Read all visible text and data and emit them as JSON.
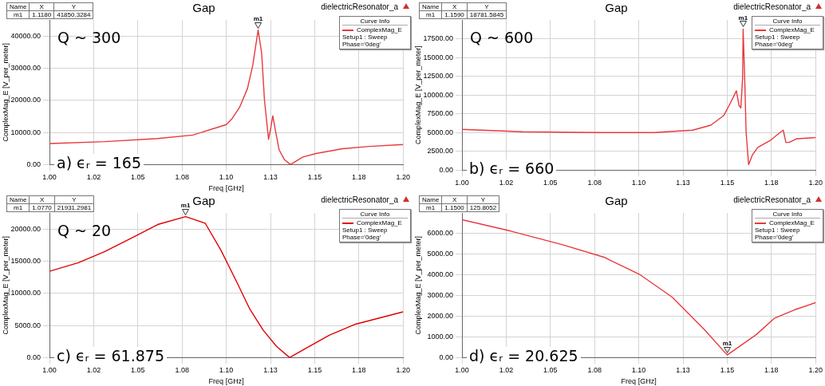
{
  "chart_data": [
    {
      "type": "line",
      "title": "Gap",
      "xlabel": "Freq [GHz]",
      "ylabel": "ComplexMag_E [V_per_meter]",
      "legend_title": "Curve Info",
      "legend": "top right",
      "grid": true,
      "xlim": [
        1.0,
        1.2
      ],
      "xticks": [
        {
          "value": 1.0,
          "label": "1.00"
        },
        {
          "value": 1.025,
          "label": "1.02"
        },
        {
          "value": 1.05,
          "label": "1.05"
        },
        {
          "value": 1.075,
          "label": "1.08"
        },
        {
          "value": 1.1,
          "label": "1.10"
        },
        {
          "value": 1.125,
          "label": "1.13"
        },
        {
          "value": 1.15,
          "label": "1.15"
        },
        {
          "value": 1.175,
          "label": "1.18"
        },
        {
          "value": 1.2,
          "label": "1.20"
        }
      ],
      "ylim": [
        0,
        45000
      ],
      "yticks": [
        {
          "value": 0,
          "label": "0.00"
        },
        {
          "value": 10000,
          "label": "10000.00"
        },
        {
          "value": 20000,
          "label": "20000.00"
        },
        {
          "value": 30000,
          "label": "30000.00"
        },
        {
          "value": 40000,
          "label": "40000.00"
        }
      ],
      "series": [
        {
          "name": "ComplexMag_E",
          "color": "#e8393c",
          "x": [
            1.0,
            1.031,
            1.061,
            1.081,
            1.1,
            1.103,
            1.1075,
            1.112,
            1.115,
            1.118,
            1.12,
            1.1216,
            1.1239,
            1.1251,
            1.1263,
            1.1276,
            1.1299,
            1.1328,
            1.1363,
            1.1433,
            1.1507,
            1.1657,
            1.1806,
            1.2
          ],
          "values": [
            6540,
            7130,
            8090,
            9190,
            12430,
            14100,
            17800,
            23700,
            31000,
            41850,
            34700,
            20000,
            7870,
            11200,
            15200,
            11200,
            4560,
            1600,
            0,
            2350,
            3460,
            4930,
            5660,
            6250
          ]
        }
      ],
      "annotations": [
        "dielectricResonator_a",
        "Setup1 : Sweep",
        "Phase='0deg'",
        "Name",
        "X",
        "Y",
        "m1",
        "1.1180",
        "41850.3284",
        "a) ϵᵣ = 165",
        "Q ~ 300",
        {
          "text": "m1",
          "x": 1.118,
          "y": 41850.3284
        }
      ]
    },
    {
      "type": "line",
      "title": "Gap",
      "ylabel": "ComplexMag_E [V_per_meter]",
      "legend_title": "Curve Info",
      "legend": "top right",
      "grid": true,
      "xlim": [
        1.0,
        1.2
      ],
      "xticks": [
        {
          "value": 1.0,
          "label": "1.00"
        },
        {
          "value": 1.025,
          "label": "1.02"
        },
        {
          "value": 1.05,
          "label": "1.05"
        },
        {
          "value": 1.075,
          "label": "1.08"
        },
        {
          "value": 1.1,
          "label": "1.10"
        },
        {
          "value": 1.125,
          "label": "1.13"
        },
        {
          "value": 1.15,
          "label": "1.15"
        },
        {
          "value": 1.175,
          "label": "1.18"
        },
        {
          "value": 1.2,
          "label": "1.20"
        }
      ],
      "ylim": [
        0,
        20000
      ],
      "yticks": [
        {
          "value": 0,
          "label": "0.00"
        },
        {
          "value": 2500,
          "label": "2500.00"
        },
        {
          "value": 5000,
          "label": "5000.00"
        },
        {
          "value": 7500,
          "label": "7500.00"
        },
        {
          "value": 10000,
          "label": "10000.00"
        },
        {
          "value": 12500,
          "label": "12500.00"
        },
        {
          "value": 15000,
          "label": "15000.00"
        },
        {
          "value": 17500,
          "label": "17500.00"
        }
      ],
      "series": [
        {
          "name": "ComplexMag_E",
          "color": "#e8393c",
          "x": [
            1.0,
            1.0346,
            1.0788,
            1.1083,
            1.1304,
            1.1407,
            1.1481,
            1.1518,
            1.1552,
            1.1567,
            1.1577,
            1.1587,
            1.159,
            1.1599,
            1.1607,
            1.1621,
            1.1643,
            1.1673,
            1.1747,
            1.1798,
            1.1817,
            1.1832,
            1.185,
            1.1894,
            1.2
          ],
          "values": [
            5410,
            5090,
            4990,
            4990,
            5310,
            5970,
            7280,
            8920,
            10560,
            8600,
            8270,
            12200,
            18781.5845,
            12200,
            4990,
            720,
            2030,
            3020,
            4000,
            4990,
            5310,
            3670,
            3670,
            4170,
            4330
          ]
        }
      ],
      "annotations": [
        "dielectricResonator_a",
        "Setup1 : Sweep",
        "Phase='0deg'",
        "Name",
        "X",
        "Y",
        "m1",
        "1.1590",
        "18781.5845",
        "b) ϵᵣ = 660",
        "Q ~ 600",
        {
          "text": "m1",
          "x": 1.159,
          "y": 18781.5845
        }
      ]
    },
    {
      "type": "line",
      "title": "Gap",
      "xlabel": "Freq [GHz]",
      "ylabel": "ComplexMag_E [V_per_meter]",
      "legend_title": "Curve Info",
      "legend": "top right",
      "grid": true,
      "xlim": [
        1.0,
        1.2
      ],
      "xticks": [
        {
          "value": 1.0,
          "label": "1.00"
        },
        {
          "value": 1.025,
          "label": "1.02"
        },
        {
          "value": 1.05,
          "label": "1.05"
        },
        {
          "value": 1.075,
          "label": "1.08"
        },
        {
          "value": 1.1,
          "label": "1.10"
        },
        {
          "value": 1.125,
          "label": "1.13"
        },
        {
          "value": 1.15,
          "label": "1.15"
        },
        {
          "value": 1.175,
          "label": "1.18"
        },
        {
          "value": 1.2,
          "label": "1.20"
        }
      ],
      "ylim": [
        0,
        22500
      ],
      "yticks": [
        {
          "value": 0,
          "label": "0.00"
        },
        {
          "value": 5000,
          "label": "5000.00"
        },
        {
          "value": 10000,
          "label": "10000.00"
        },
        {
          "value": 15000,
          "label": "15000.00"
        },
        {
          "value": 20000,
          "label": "20000.00"
        }
      ],
      "series": [
        {
          "name": "ComplexMag_E",
          "color": "#e00000",
          "x": [
            1.0,
            1.0164,
            1.0313,
            1.0463,
            1.0612,
            1.077,
            1.0881,
            1.097,
            1.106,
            1.1134,
            1.1209,
            1.1284,
            1.1358,
            1.1433,
            1.1582,
            1.1731,
            1.2
          ],
          "values": [
            13430,
            14770,
            16490,
            18590,
            20700,
            21931.2981,
            20890,
            16680,
            11710,
            7500,
            4250,
            1760,
            0,
            1190,
            3480,
            5200,
            7120
          ]
        }
      ],
      "annotations": [
        "dielectricResonator_a",
        "Setup1 : Sweep",
        "Phase='0deg'",
        "Name",
        "X",
        "Y",
        "m1",
        "1.0770",
        "21931.2981",
        "c) ϵᵣ = 61.875",
        "Q ~ 20",
        {
          "text": "m1",
          "x": 1.077,
          "y": 21931.2981
        }
      ]
    },
    {
      "type": "line",
      "title": "Gap",
      "xlabel": "Freq [GHz]",
      "ylabel": "ComplexMag_E [V_per_meter]",
      "legend_title": "Curve Info",
      "legend": "top right",
      "grid": true,
      "xlim": [
        1.0,
        1.2
      ],
      "xticks": [
        {
          "value": 1.0,
          "label": "1.00"
        },
        {
          "value": 1.025,
          "label": "1.02"
        },
        {
          "value": 1.05,
          "label": "1.05"
        },
        {
          "value": 1.075,
          "label": "1.08"
        },
        {
          "value": 1.1,
          "label": "1.10"
        },
        {
          "value": 1.125,
          "label": "1.13"
        },
        {
          "value": 1.15,
          "label": "1.15"
        },
        {
          "value": 1.175,
          "label": "1.18"
        },
        {
          "value": 1.2,
          "label": "1.20"
        }
      ],
      "ylim": [
        0,
        7000
      ],
      "yticks": [
        {
          "value": 0,
          "label": "0.00"
        },
        {
          "value": 1000,
          "label": "1000.00"
        },
        {
          "value": 2000,
          "label": "2000.00"
        },
        {
          "value": 3000,
          "label": "3000.00"
        },
        {
          "value": 4000,
          "label": "4000.00"
        },
        {
          "value": 5000,
          "label": "5000.00"
        },
        {
          "value": 6000,
          "label": "6000.00"
        }
      ],
      "series": [
        {
          "name": "ComplexMag_E",
          "color": "#e8393c",
          "x": [
            1.0,
            1.0277,
            1.0569,
            1.0803,
            1.1007,
            1.119,
            1.1372,
            1.15,
            1.1664,
            1.1766,
            1.1883,
            1.2
          ],
          "values": [
            6670,
            6120,
            5460,
            4860,
            4010,
            2920,
            1350,
            125.8052,
            1110,
            1900,
            2320,
            2660
          ]
        }
      ],
      "annotations": [
        "dielectricResonator_a",
        "Setup1 : Sweep",
        "Phase='0deg'",
        "Name",
        "X",
        "Y",
        "m1",
        "1.1500",
        "125.8052",
        "d) ϵᵣ = 20.625",
        {
          "text": "m1",
          "x": 1.15,
          "y": 125.8052
        }
      ]
    }
  ]
}
